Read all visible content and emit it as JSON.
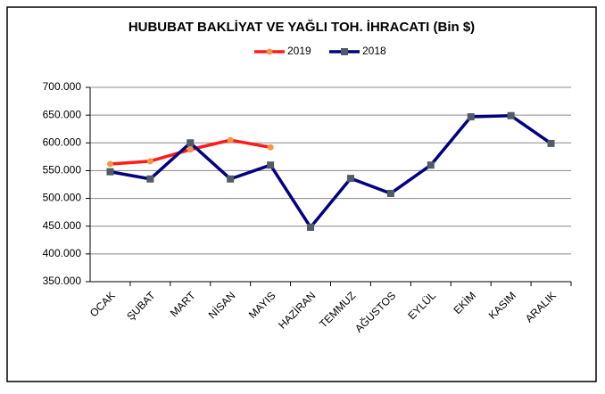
{
  "chart_data": {
    "type": "line",
    "title": "HUBUBAT BAKLİYAT VE YAĞLI TOH. İHRACATI (Bin $)",
    "categories": [
      "OCAK",
      "ŞUBAT",
      "MART",
      "NİSAN",
      "MAYIS",
      "HAZİRAN",
      "TEMMUZ",
      "AĞUSTOS",
      "EYLÜL",
      "EKİM",
      "KASIM",
      "ARALIK"
    ],
    "series": [
      {
        "name": "2019",
        "color": "#ff1a1a",
        "marker_color": "#f79646",
        "values": [
          562000,
          567000,
          588000,
          605000,
          592000,
          null,
          null,
          null,
          null,
          null,
          null,
          null
        ]
      },
      {
        "name": "2018",
        "color": "#000080",
        "marker_color": "#4f5b66",
        "values": [
          548000,
          535000,
          600000,
          535000,
          560000,
          448000,
          536000,
          509000,
          560000,
          647000,
          649000,
          599000
        ]
      }
    ],
    "ylim": [
      350000,
      700000
    ],
    "yticks": [
      {
        "value": 350000,
        "label": "350.000"
      },
      {
        "value": 400000,
        "label": "400.000"
      },
      {
        "value": 450000,
        "label": "450.000"
      },
      {
        "value": 500000,
        "label": "500.000"
      },
      {
        "value": 550000,
        "label": "550.000"
      },
      {
        "value": 600000,
        "label": "600.000"
      },
      {
        "value": 650000,
        "label": "650.000"
      },
      {
        "value": 700000,
        "label": "700.000"
      }
    ],
    "grid": true,
    "legend": "top"
  }
}
